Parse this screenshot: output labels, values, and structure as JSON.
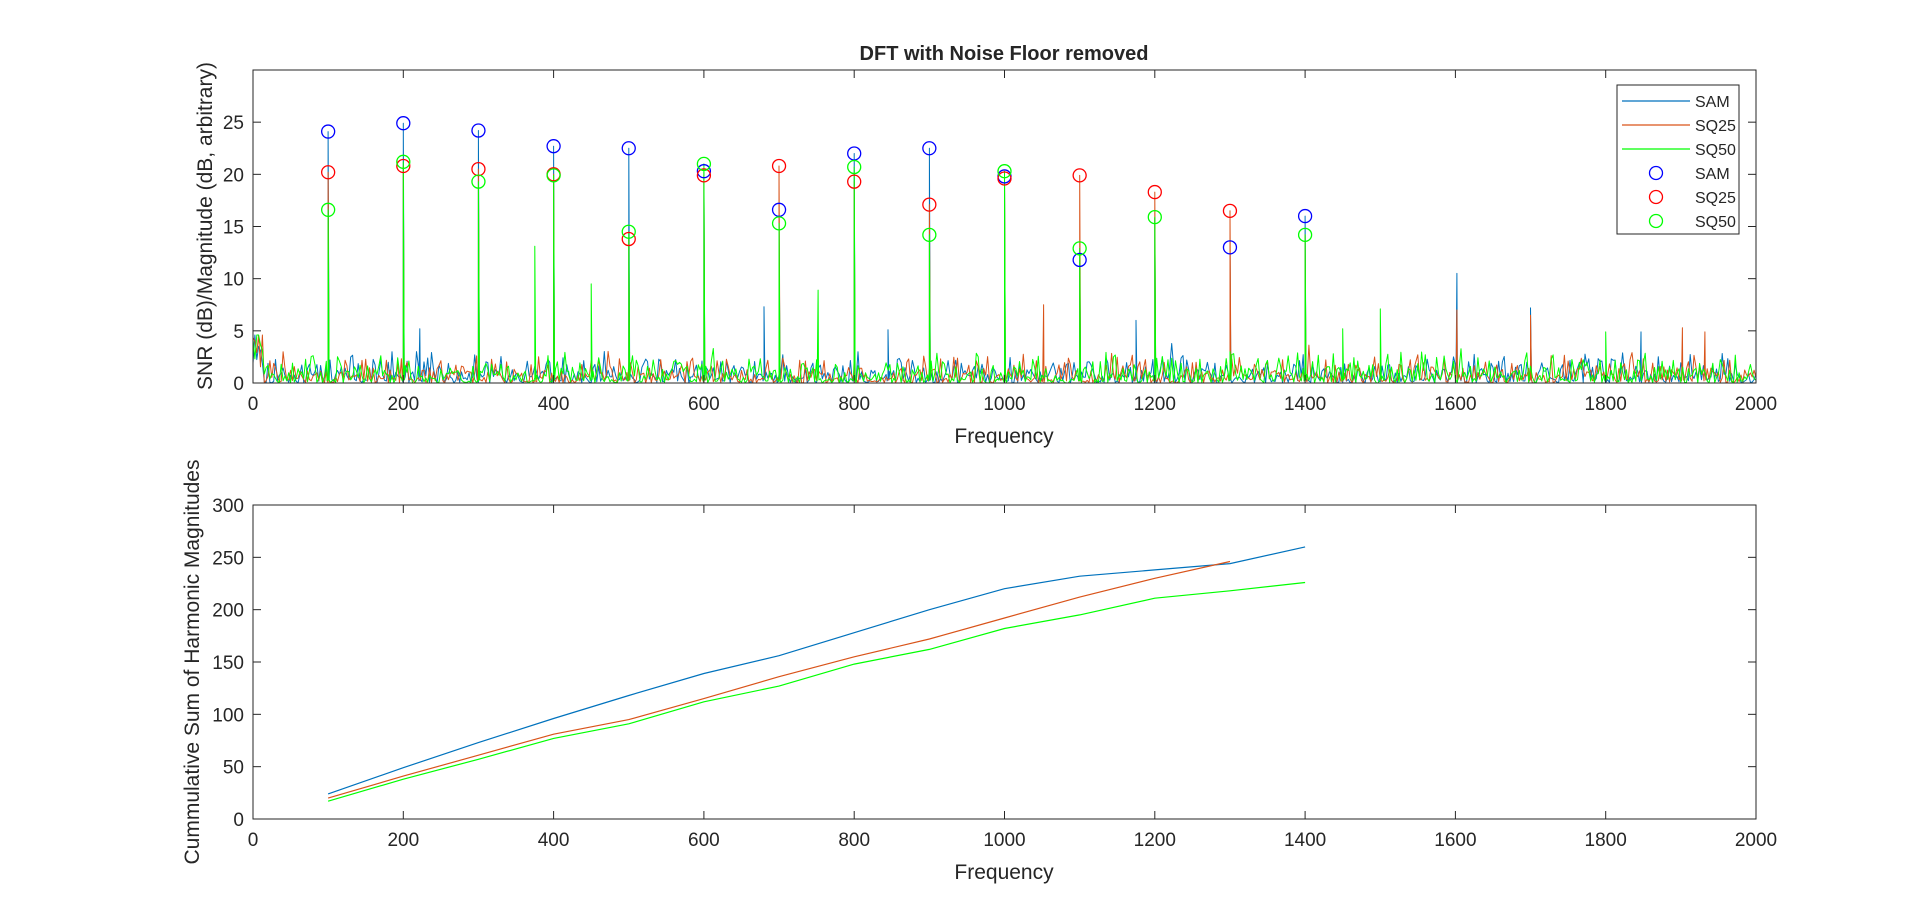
{
  "figure": {
    "title": "DFT with Noise Floor removed"
  },
  "colors": {
    "SAM": "#0072BD",
    "SQ25": "#D95319",
    "SQ50": "#00FF00",
    "SAM_marker": "#0000FF",
    "SQ25_marker": "#FF0000",
    "SQ50_marker": "#00FF00",
    "axis": "#262626"
  },
  "chart_data": [
    {
      "type": "line",
      "title": "DFT with Noise Floor removed",
      "xlabel": "Frequency",
      "ylabel": "SNR (dB)/Magnitude (dB, arbitrary)",
      "xlim": [
        0,
        2000
      ],
      "ylim": [
        0,
        30
      ],
      "xticks": [
        0,
        200,
        400,
        600,
        800,
        1000,
        1200,
        1400,
        1600,
        1800,
        2000
      ],
      "yticks": [
        0,
        5,
        10,
        15,
        20,
        25
      ],
      "grid": false,
      "legend_position": "top-right",
      "legend": [
        "SAM",
        "SQ25",
        "SQ50",
        "SAM",
        "SQ25",
        "SQ50"
      ],
      "harmonics_x": [
        100,
        200,
        300,
        400,
        500,
        600,
        700,
        800,
        900,
        1000,
        1100,
        1200,
        1300,
        1400
      ],
      "series": [
        {
          "name": "SAM",
          "style": "line",
          "peaks": [
            24.1,
            24.9,
            24.2,
            22.7,
            22.5,
            20.3,
            16.6,
            22.0,
            22.5,
            19.8,
            11.8,
            15.8,
            13.0,
            16.0
          ],
          "extra_spikes": [
            [
              222,
              5.2
            ],
            [
              680,
              7.3
            ],
            [
              845,
              5.1
            ],
            [
              1175,
              6.0
            ],
            [
              1602,
              10.5
            ],
            [
              1700,
              7.2
            ],
            [
              1847,
              4.9
            ]
          ]
        },
        {
          "name": "SQ25",
          "style": "line",
          "peaks": [
            20.2,
            20.8,
            20.5,
            20.0,
            13.8,
            19.9,
            20.8,
            19.3,
            17.1,
            19.6,
            19.9,
            18.3,
            16.5,
            14.2
          ],
          "extra_spikes": [
            [
              1052,
              7.5
            ],
            [
              1602,
              7.0
            ],
            [
              1700,
              6.5
            ],
            [
              1902,
              5.3
            ],
            [
              1932,
              4.9
            ]
          ]
        },
        {
          "name": "SQ50",
          "style": "line",
          "peaks": [
            16.6,
            21.2,
            19.3,
            19.9,
            14.5,
            21.0,
            15.3,
            20.7,
            14.2,
            20.3,
            12.9,
            15.9,
            3.0,
            14.2
          ],
          "extra_spikes": [
            [
              375,
              13.1
            ],
            [
              450,
              9.5
            ],
            [
              752,
              8.9
            ],
            [
              1500,
              7.1
            ],
            [
              1450,
              5.2
            ],
            [
              1800,
              4.9
            ]
          ]
        },
        {
          "name": "SAM",
          "style": "marker",
          "x": [
            100,
            200,
            300,
            400,
            500,
            600,
            700,
            800,
            900,
            1000,
            1100,
            1300,
            1400
          ],
          "y": [
            24.1,
            24.9,
            24.2,
            22.7,
            22.5,
            20.3,
            16.6,
            22.0,
            22.5,
            19.8,
            11.8,
            13.0,
            16.0
          ]
        },
        {
          "name": "SQ25",
          "style": "marker",
          "x": [
            100,
            200,
            300,
            400,
            500,
            600,
            700,
            800,
            900,
            1000,
            1100,
            1200,
            1300
          ],
          "y": [
            20.2,
            20.8,
            20.5,
            20.0,
            13.8,
            19.9,
            20.8,
            19.3,
            17.1,
            19.6,
            19.9,
            18.3,
            16.5
          ]
        },
        {
          "name": "SQ50",
          "style": "marker",
          "x": [
            100,
            200,
            300,
            400,
            500,
            600,
            700,
            800,
            900,
            1000,
            1100,
            1200,
            1400
          ],
          "y": [
            16.6,
            21.2,
            19.3,
            19.9,
            14.5,
            21.0,
            15.3,
            20.7,
            14.2,
            20.3,
            12.9,
            15.9,
            14.2
          ]
        }
      ]
    },
    {
      "type": "line",
      "title": "",
      "xlabel": "Frequency",
      "ylabel": "Cummulative Sum of Harmonic Magnitudes",
      "xlim": [
        0,
        2000
      ],
      "ylim": [
        0,
        300
      ],
      "xticks": [
        0,
        200,
        400,
        600,
        800,
        1000,
        1200,
        1400,
        1600,
        1800,
        2000
      ],
      "yticks": [
        0,
        50,
        100,
        150,
        200,
        250,
        300
      ],
      "grid": false,
      "series": [
        {
          "name": "SAM",
          "x": [
            100,
            200,
            300,
            400,
            500,
            600,
            700,
            800,
            900,
            1000,
            1100,
            1200,
            1300,
            1400
          ],
          "y": [
            24,
            49,
            73,
            96,
            118,
            139,
            156,
            178,
            200,
            220,
            232,
            238,
            244,
            260
          ]
        },
        {
          "name": "SQ25",
          "x": [
            100,
            200,
            300,
            400,
            500,
            600,
            700,
            800,
            900,
            1000,
            1100,
            1200,
            1300
          ],
          "y": [
            20,
            41,
            61,
            81,
            95,
            115,
            136,
            155,
            172,
            192,
            212,
            230,
            246
          ]
        },
        {
          "name": "SQ50",
          "x": [
            100,
            200,
            300,
            400,
            500,
            600,
            700,
            800,
            900,
            1000,
            1100,
            1200,
            1300,
            1400
          ],
          "y": [
            17,
            38,
            57,
            77,
            91,
            112,
            127,
            148,
            162,
            182,
            195,
            211,
            218,
            226
          ]
        }
      ]
    }
  ]
}
